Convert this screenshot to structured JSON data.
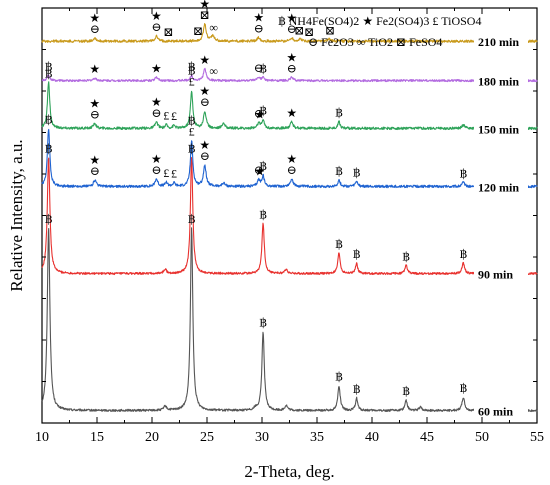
{
  "chart_data": {
    "type": "line",
    "xlabel": "2-Theta, deg.",
    "ylabel": "Relative Intensity, a.u.",
    "xlim": [
      10,
      55
    ],
    "xticks": [
      "10",
      "15",
      "20",
      "25",
      "30",
      "35",
      "40",
      "45",
      "50",
      "55"
    ],
    "ylim": [
      0,
      100
    ],
    "y_ticks_shown": false,
    "legend": [
      {
        "symbol": "฿",
        "name": "NH4Fe(SO4)2",
        "sub": "NH",
        "parts": [
          [
            "NH",
            ""
          ],
          [
            "4",
            "sub"
          ],
          [
            "Fe(SO",
            ""
          ],
          [
            "4",
            "sub"
          ],
          [
            ")",
            ""
          ],
          [
            "2",
            "sub"
          ]
        ]
      },
      {
        "symbol": "★",
        "name": "Fe2(SO4)3",
        "parts": [
          [
            "Fe",
            ""
          ],
          [
            "2",
            "sub"
          ],
          [
            "(SO",
            ""
          ],
          [
            "4",
            "sub"
          ],
          [
            ")",
            ""
          ],
          [
            "3",
            "sub"
          ]
        ]
      },
      {
        "symbol": "£",
        "name": "TiOSO4",
        "parts": [
          [
            "TiOSO",
            ""
          ],
          [
            "4",
            "sub"
          ]
        ]
      },
      {
        "symbol": "⊖",
        "name": "Fe2O3",
        "parts": [
          [
            "Fe",
            ""
          ],
          [
            "2",
            "sub"
          ],
          [
            "O",
            ""
          ],
          [
            "3",
            "sub"
          ]
        ]
      },
      {
        "symbol": "∞",
        "name": "TiO2",
        "parts": [
          [
            "TiO",
            ""
          ],
          [
            "2",
            "sub"
          ]
        ]
      },
      {
        "symbol": "⊠",
        "name": "FeSO4",
        "parts": [
          [
            "FeSO",
            ""
          ],
          [
            "4",
            "sub"
          ]
        ]
      }
    ],
    "legend_placement": "top-right",
    "series": [
      {
        "name": "60 min",
        "color": "#555555",
        "baseline": 3,
        "noise": 0.25,
        "peaks": [
          [
            10.6,
            44,
            0.14
          ],
          [
            21.2,
            1,
            0.15
          ],
          [
            23.6,
            44,
            0.13
          ],
          [
            29.4,
            0.5,
            0.2
          ],
          [
            30.1,
            19,
            0.13
          ],
          [
            32.2,
            1.2,
            0.15
          ],
          [
            37.0,
            6,
            0.13
          ],
          [
            38.6,
            3,
            0.12
          ],
          [
            43.1,
            2.5,
            0.13
          ],
          [
            44.4,
            0.8,
            0.15
          ],
          [
            48.3,
            3.2,
            0.14
          ],
          [
            52.0,
            0.6,
            0.15
          ]
        ],
        "markers": [
          [
            10.6,
            "฿"
          ],
          [
            23.6,
            "฿"
          ],
          [
            30.1,
            "฿"
          ],
          [
            37.0,
            "฿"
          ],
          [
            38.6,
            "฿"
          ],
          [
            43.1,
            "฿"
          ],
          [
            48.3,
            "฿"
          ]
        ]
      },
      {
        "name": "90 min",
        "color": "#e8322f",
        "baseline": 36,
        "noise": 0.25,
        "peaks": [
          [
            10.6,
            28,
            0.14
          ],
          [
            21.2,
            1,
            0.15
          ],
          [
            23.6,
            28,
            0.13
          ],
          [
            30.1,
            12,
            0.13
          ],
          [
            32.2,
            1,
            0.15
          ],
          [
            37.0,
            5,
            0.13
          ],
          [
            38.6,
            2.5,
            0.12
          ],
          [
            43.1,
            2,
            0.13
          ],
          [
            48.3,
            2.5,
            0.14
          ]
        ],
        "markers": [
          [
            10.6,
            "฿"
          ],
          [
            23.6,
            "฿"
          ],
          [
            30.1,
            "฿"
          ],
          [
            37.0,
            "฿"
          ],
          [
            38.6,
            "฿"
          ],
          [
            43.1,
            "฿"
          ],
          [
            48.3,
            "฿"
          ]
        ]
      },
      {
        "name": "120 min",
        "color": "#1f63d1",
        "baseline": 57,
        "noise": 0.3,
        "peaks": [
          [
            10.6,
            14,
            0.13
          ],
          [
            14.8,
            1.5,
            0.15
          ],
          [
            20.4,
            1.8,
            0.15
          ],
          [
            21.3,
            1,
            0.13
          ],
          [
            22.0,
            0.8,
            0.13
          ],
          [
            23.6,
            11,
            0.13
          ],
          [
            24.8,
            5,
            0.15
          ],
          [
            26.5,
            0.8,
            0.15
          ],
          [
            29.7,
            1.5,
            0.15
          ],
          [
            30.1,
            2.5,
            0.13
          ],
          [
            32.7,
            1.8,
            0.15
          ],
          [
            37.0,
            1.5,
            0.13
          ],
          [
            38.6,
            1.2,
            0.13
          ],
          [
            48.3,
            1,
            0.14
          ]
        ],
        "markers": [
          [
            10.6,
            "฿"
          ],
          [
            14.8,
            "⊖"
          ],
          [
            14.8,
            "★"
          ],
          [
            20.4,
            "⊖"
          ],
          [
            20.4,
            "★"
          ],
          [
            21.3,
            "£"
          ],
          [
            22.0,
            "£"
          ],
          [
            23.6,
            "£"
          ],
          [
            23.6,
            "฿"
          ],
          [
            24.8,
            "⊖"
          ],
          [
            24.8,
            "★"
          ],
          [
            29.7,
            "⊖"
          ],
          [
            30.1,
            "฿"
          ],
          [
            29.8,
            "★"
          ],
          [
            32.7,
            "⊖"
          ],
          [
            32.7,
            "★"
          ],
          [
            37.0,
            "฿"
          ],
          [
            38.6,
            "฿"
          ],
          [
            48.3,
            "฿"
          ]
        ]
      },
      {
        "name": "150 min",
        "color": "#2fa35a",
        "baseline": 71,
        "noise": 0.3,
        "peaks": [
          [
            10.6,
            11,
            0.13
          ],
          [
            14.8,
            1.2,
            0.15
          ],
          [
            20.4,
            1.5,
            0.15
          ],
          [
            21.3,
            0.8,
            0.13
          ],
          [
            22.0,
            0.7,
            0.13
          ],
          [
            23.6,
            9,
            0.13
          ],
          [
            24.8,
            4,
            0.15
          ],
          [
            26.5,
            1.3,
            0.15
          ],
          [
            29.7,
            1.2,
            0.15
          ],
          [
            30.1,
            2,
            0.13
          ],
          [
            32.7,
            1.5,
            0.15
          ],
          [
            37.0,
            1.6,
            0.13
          ],
          [
            48.3,
            0.8,
            0.14
          ]
        ],
        "markers": [
          [
            10.6,
            "฿"
          ],
          [
            14.8,
            "⊖"
          ],
          [
            14.8,
            "★"
          ],
          [
            20.4,
            "⊖"
          ],
          [
            20.4,
            "★"
          ],
          [
            21.3,
            "£"
          ],
          [
            22.0,
            "£"
          ],
          [
            23.6,
            "£"
          ],
          [
            23.6,
            "฿"
          ],
          [
            24.8,
            "⊖"
          ],
          [
            24.8,
            "★"
          ],
          [
            29.7,
            "⊖"
          ],
          [
            30.1,
            "฿"
          ],
          [
            29.8,
            "★"
          ],
          [
            32.7,
            "★"
          ],
          [
            37.0,
            "฿"
          ]
        ]
      },
      {
        "name": "180 min",
        "color": "#b36ce0",
        "baseline": 82.5,
        "noise": 0.25,
        "peaks": [
          [
            10.6,
            1.2,
            0.14
          ],
          [
            14.8,
            0.6,
            0.15
          ],
          [
            20.4,
            0.8,
            0.15
          ],
          [
            23.6,
            1.2,
            0.13
          ],
          [
            24.8,
            2.8,
            0.15
          ],
          [
            29.7,
            0.8,
            0.15
          ],
          [
            30.1,
            0.7,
            0.13
          ],
          [
            32.7,
            0.8,
            0.15
          ]
        ],
        "markers": [
          [
            10.6,
            "฿"
          ],
          [
            14.8,
            "★"
          ],
          [
            20.4,
            "★"
          ],
          [
            23.6,
            "฿"
          ],
          [
            24.8,
            "★"
          ],
          [
            25.6,
            "∞"
          ],
          [
            29.7,
            "⊖"
          ],
          [
            30.1,
            "฿"
          ],
          [
            32.7,
            "⊖"
          ],
          [
            32.7,
            "★"
          ]
        ]
      },
      {
        "name": "210 min",
        "color": "#c99a1c",
        "baseline": 92,
        "noise": 0.3,
        "peaks": [
          [
            14.8,
            0.8,
            0.15
          ],
          [
            20.4,
            1.2,
            0.15
          ],
          [
            24.8,
            4,
            0.15
          ],
          [
            25.5,
            1.2,
            0.2
          ],
          [
            29.7,
            0.9,
            0.15
          ],
          [
            32.7,
            0.8,
            0.15
          ],
          [
            33.5,
            0.5,
            0.15
          ],
          [
            36.1,
            0.5,
            0.15
          ]
        ],
        "markers": [
          [
            14.8,
            "⊖"
          ],
          [
            14.8,
            "★"
          ],
          [
            20.4,
            "⊖"
          ],
          [
            20.4,
            "★"
          ],
          [
            21.5,
            "⊠"
          ],
          [
            24.2,
            "⊠"
          ],
          [
            24.8,
            "⊠"
          ],
          [
            24.8,
            "★"
          ],
          [
            25.6,
            "∞"
          ],
          [
            29.7,
            "⊖"
          ],
          [
            29.7,
            "★"
          ],
          [
            32.7,
            "⊖"
          ],
          [
            32.7,
            "★"
          ],
          [
            33.4,
            "⊠"
          ],
          [
            34.3,
            "⊠"
          ],
          [
            36.2,
            "⊠"
          ]
        ]
      }
    ]
  }
}
